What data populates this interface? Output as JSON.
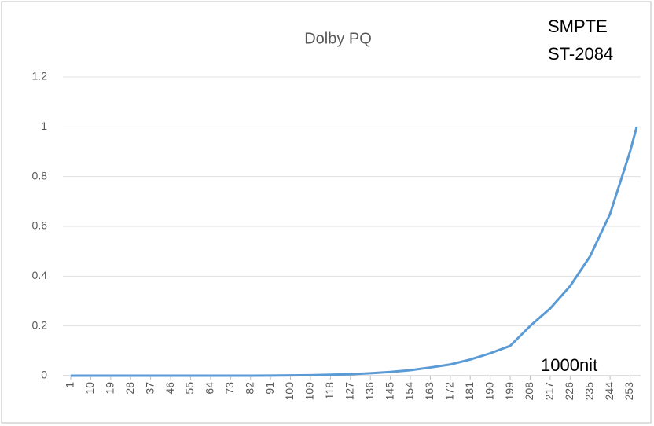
{
  "chart_data": {
    "type": "line",
    "title": "Dolby PQ",
    "annotations": [
      "SMPTE",
      "ST-2084",
      "1000nit"
    ],
    "x": [
      1,
      10,
      19,
      28,
      37,
      46,
      55,
      64,
      73,
      82,
      91,
      100,
      109,
      118,
      127,
      136,
      145,
      154,
      163,
      172,
      181,
      190,
      199,
      208,
      217,
      226,
      235,
      244,
      253,
      256
    ],
    "series": [
      {
        "name": "Dolby PQ",
        "color": "#5b9bd5",
        "values": [
          0,
          0,
          0,
          0,
          0,
          0,
          0,
          0,
          0,
          0,
          0.0005,
          0.001,
          0.002,
          0.004,
          0.006,
          0.01,
          0.015,
          0.022,
          0.033,
          0.045,
          0.065,
          0.09,
          0.12,
          0.2,
          0.27,
          0.36,
          0.48,
          0.65,
          0.9,
          1
        ]
      }
    ],
    "xlim": [
      1,
      256
    ],
    "xticks": [
      1,
      10,
      19,
      28,
      37,
      46,
      55,
      64,
      73,
      82,
      91,
      100,
      109,
      118,
      127,
      136,
      145,
      154,
      163,
      172,
      181,
      190,
      199,
      208,
      217,
      226,
      235,
      244,
      253
    ],
    "ylim": [
      0,
      1.2
    ],
    "yticks": [
      0,
      0.2,
      0.4,
      0.6,
      0.8,
      1,
      1.2
    ],
    "grid": true
  }
}
